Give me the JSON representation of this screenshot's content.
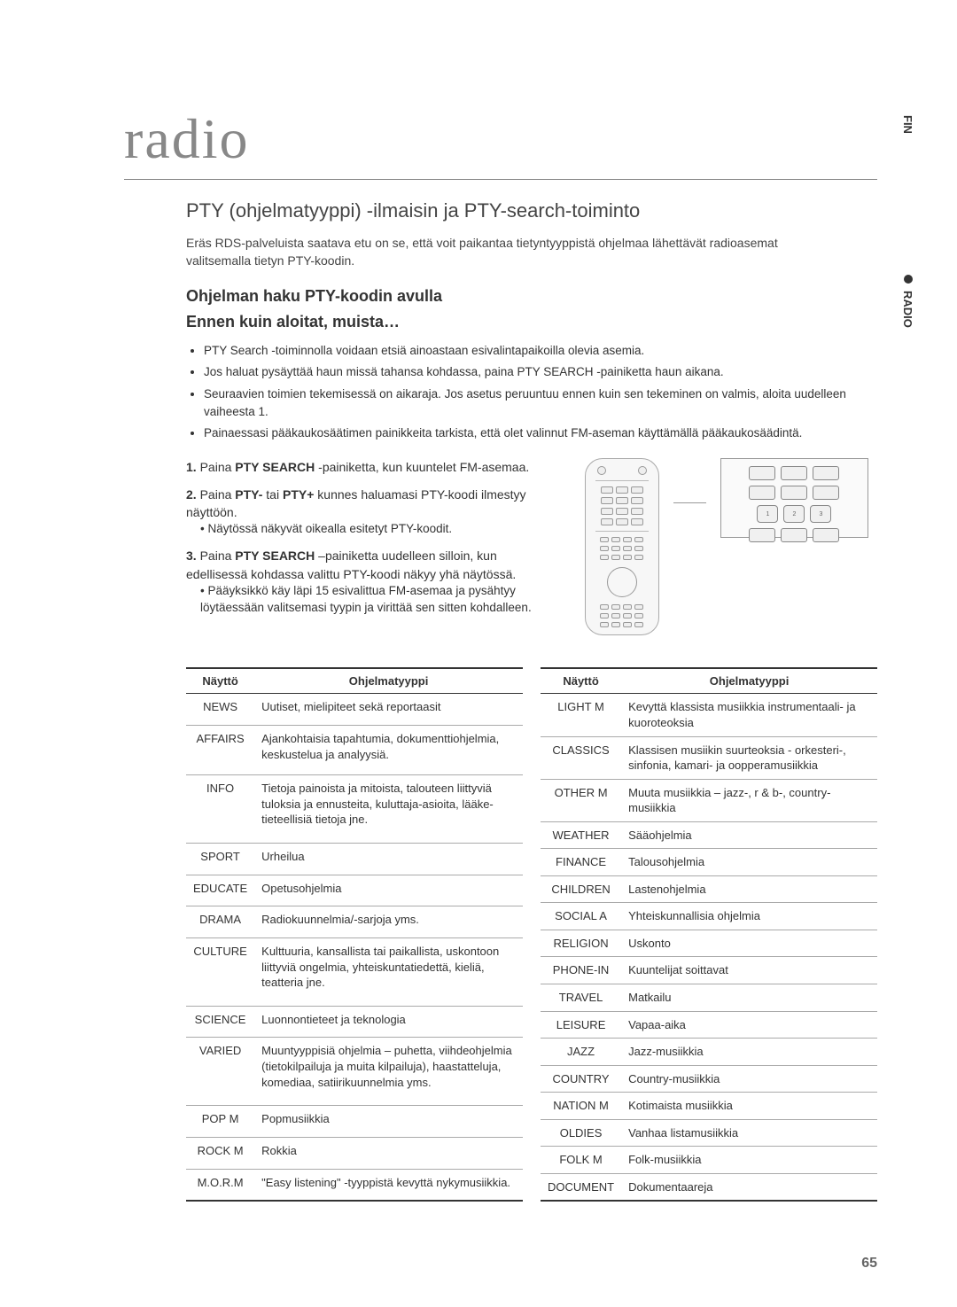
{
  "side": {
    "lang": "FIN",
    "section": "RADIO"
  },
  "page": {
    "title": "radio",
    "number": "65"
  },
  "section": {
    "title": "PTY (ohjelmatyyppi) -ilmaisin ja PTY-search-toiminto",
    "intro": "Eräs RDS-palveluista saatava etu on se, että voit paikantaa tietyntyyppistä ohjelmaa lähettävät radioasemat valitsemalla tietyn PTY-koodin."
  },
  "subheadings": {
    "h1": "Ohjelman haku PTY-koodin avulla",
    "h2": "Ennen kuin aloitat, muista…"
  },
  "bullets": [
    "PTY Search -toiminnolla voidaan etsiä ainoastaan esivalintapaikoilla olevia asemia.",
    "Jos haluat pysäyttää haun missä tahansa kohdassa, paina PTY SEARCH -painiketta haun aikana.",
    "Seuraavien toimien tekemisessä on aikaraja. Jos asetus peruuntuu ennen kuin sen tekeminen on valmis, aloita uudelleen vaiheesta 1.",
    "Painaessasi pääkaukosäätimen painikkeita tarkista, että olet valinnut FM-aseman käyttämällä pääkaukosäädintä."
  ],
  "steps": [
    {
      "num": "1.",
      "text_a": "Paina ",
      "bold": "PTY SEARCH",
      "text_b": " -painiketta, kun kuuntelet FM-asemaa."
    },
    {
      "num": "2.",
      "text_a": "Paina ",
      "bold": "PTY-",
      "text_mid": " tai ",
      "bold2": "PTY+",
      "text_b": " kunnes haluamasi PTY-koodi ilmestyy näyttöön.",
      "sub": "Näytössä näkyvät oikealla esitetyt PTY-koodit."
    },
    {
      "num": "3.",
      "text_a": "Paina ",
      "bold": "PTY SEARCH",
      "text_b": " –painiketta uudelleen silloin, kun edellisessä kohdassa valittu PTY-koodi näkyy yhä näytössä.",
      "sub": "Pääyksikkö käy läpi 15 esivalittua FM-asemaa ja pysähtyy löytäessään valitsemasi tyypin ja virittää sen sitten kohdalleen."
    }
  ],
  "table_headers": {
    "col1": "Näyttö",
    "col2": "Ohjelmatyyppi"
  },
  "table_left": [
    [
      "NEWS",
      "Uutiset, mielipiteet sekä reportaasit"
    ],
    [
      "AFFAIRS",
      "Ajankohtaisia tapahtumia, dokumenttiohjelmia, keskustelua ja analyysiä."
    ],
    [
      "INFO",
      "Tietoja painoista ja mitoista, talouteen liittyviä tuloksia ja ennusteita, kuluttaja-asioita, lääke-tieteellisiä tietoja jne."
    ],
    [
      "SPORT",
      "Urheilua"
    ],
    [
      "EDUCATE",
      "Opetusohjelmia"
    ],
    [
      "DRAMA",
      "Radiokuunnelmia/-sarjoja yms."
    ],
    [
      "CULTURE",
      "Kulttuuria, kansallista tai paikallista, uskontoon liittyviä ongelmia, yhteiskuntatiedettä, kieliä, teatteria jne."
    ],
    [
      "SCIENCE",
      "Luonnontieteet ja teknologia"
    ],
    [
      "VARIED",
      "Muuntyyppisiä ohjelmia – puhetta, viihdeohjelmia (tietokilpailuja ja muita kilpailuja), haastatteluja, komediaa, satiirikuunnelmia yms."
    ],
    [
      "POP M",
      "Popmusiikkia"
    ],
    [
      "ROCK M",
      "Rokkia"
    ],
    [
      "M.O.R.M",
      "\"Easy listening\" -tyyppistä kevyttä nykymusiikkia."
    ]
  ],
  "table_right": [
    [
      "LIGHT M",
      "Kevyttä klassista musiikkia  instrumentaali- ja kuoroteoksia"
    ],
    [
      "CLASSICS",
      "Klassisen musiikin suurteoksia - orkesteri-, sinfonia, kamari- ja oopperamusiikkia"
    ],
    [
      "OTHER M",
      "Muuta musiikkia – jazz-, r & b-, country-musiikkia"
    ],
    [
      "WEATHER",
      "Sääohjelmia"
    ],
    [
      "FINANCE",
      "Talousohjelmia"
    ],
    [
      "CHILDREN",
      "Lastenohjelmia"
    ],
    [
      "SOCIAL A",
      "Yhteiskunnallisia ohjelmia"
    ],
    [
      "RELIGION",
      "Uskonto"
    ],
    [
      "PHONE-IN",
      "Kuuntelijat soittavat"
    ],
    [
      "TRAVEL",
      "Matkailu"
    ],
    [
      "LEISURE",
      "Vapaa-aika"
    ],
    [
      "JAZZ",
      "Jazz-musiikkia"
    ],
    [
      "COUNTRY",
      "Country-musiikkia"
    ],
    [
      "NATION M",
      "Kotimaista musiikkia"
    ],
    [
      "OLDIES",
      "Vanhaa listamusiikkia"
    ],
    [
      "FOLK M",
      "Folk-musiikkia"
    ],
    [
      "DOCUMENT",
      "Dokumentaareja"
    ]
  ],
  "colors": {
    "title": "#888888",
    "text": "#333333",
    "rule": "#888888",
    "table_border": "#333333",
    "table_row_border": "#aaaaaa"
  }
}
